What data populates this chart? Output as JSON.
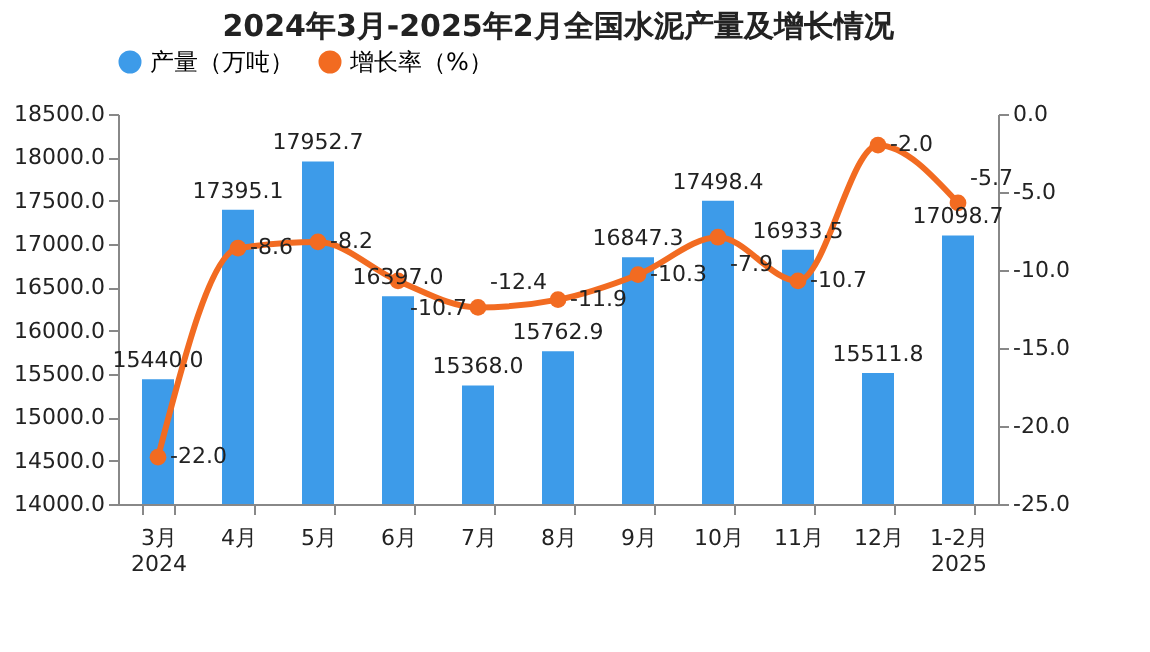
{
  "chart_data": {
    "type": "bar",
    "title": "2024年3月-2025年2月全国水泥产量及增长情况",
    "categories": [
      "3月\n2024",
      "4月",
      "5月",
      "6月",
      "7月",
      "8月",
      "9月",
      "10月",
      "11月",
      "12月",
      "1-2月\n2025"
    ],
    "series": [
      {
        "name": "产量（万吨）",
        "color": "#3d9be9",
        "values": [
          15440.0,
          17395.1,
          17952.7,
          16397.0,
          15368.0,
          15762.9,
          16847.3,
          17498.4,
          16933.5,
          15511.8,
          17098.7
        ],
        "value_labels": [
          "15440.0",
          "17395.1",
          "17952.7",
          "16397.0",
          "15368.0",
          "15762.9",
          "16847.3",
          "17498.4",
          "16933.5",
          "15511.8",
          "17098.7"
        ]
      },
      {
        "name": "增长率（%）",
        "type": "line",
        "axis": "y2",
        "color": "#f26b21",
        "values": [
          -22.0,
          -8.6,
          -8.2,
          -10.7,
          -12.4,
          -11.9,
          -10.3,
          -7.9,
          -10.7,
          -2.0,
          -5.7
        ],
        "value_labels": [
          "-22.0",
          "-8.6",
          "-8.2",
          "-10.7",
          "-12.4",
          "-11.9",
          "-10.3",
          "-7.9",
          "-10.7",
          "-2.0",
          "-5.7"
        ]
      }
    ],
    "ylim": [
      14000,
      18500
    ],
    "yticks": [
      {
        "value": 14000,
        "label": "14000.0"
      },
      {
        "value": 14500,
        "label": "14500.0"
      },
      {
        "value": 15000,
        "label": "15000.0"
      },
      {
        "value": 15500,
        "label": "15500.0"
      },
      {
        "value": 16000,
        "label": "16000.0"
      },
      {
        "value": 16500,
        "label": "16500.0"
      },
      {
        "value": 17000,
        "label": "17000.0"
      },
      {
        "value": 17500,
        "label": "17500.0"
      },
      {
        "value": 18000,
        "label": "18000.0"
      },
      {
        "value": 18500,
        "label": "18500.0"
      }
    ],
    "y2lim": [
      -25,
      0
    ],
    "y2ticks": [
      {
        "value": -25,
        "label": "-25.0"
      },
      {
        "value": -20,
        "label": "-20.0"
      },
      {
        "value": -15,
        "label": "-15.0"
      },
      {
        "value": -10,
        "label": "-10.0"
      },
      {
        "value": -5,
        "label": "-5.0"
      },
      {
        "value": 0,
        "label": "0.0"
      }
    ],
    "legend": "top",
    "marker": "circle",
    "line_style": "solid",
    "grid": false
  }
}
